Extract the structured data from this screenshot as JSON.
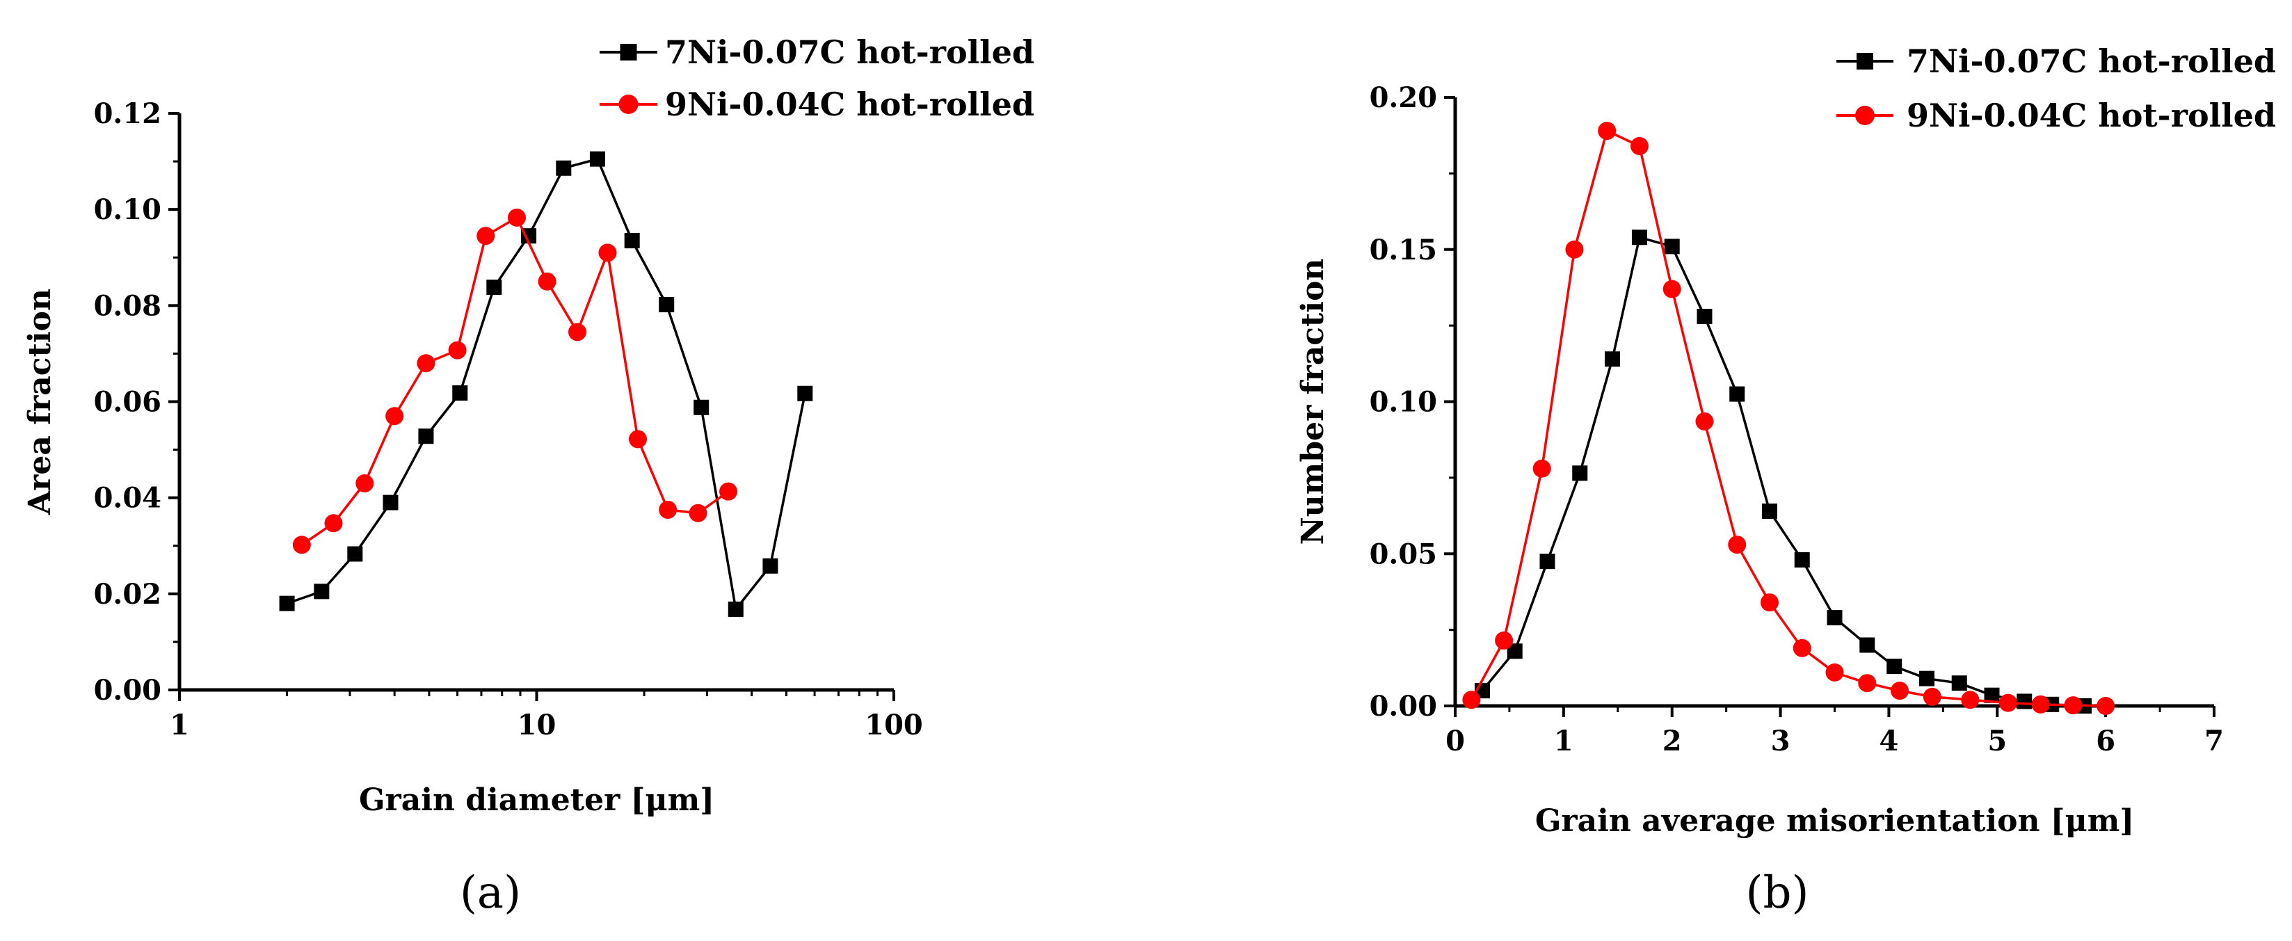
{
  "chart_data": [
    {
      "type": "line",
      "panel_label": "(a)",
      "xlabel": "Grain diameter [μm]",
      "ylabel": "Area fraction",
      "xscale": "log",
      "xlim": [
        1,
        100
      ],
      "ylim": [
        0,
        0.12
      ],
      "xticks": [
        "1",
        "10",
        "100"
      ],
      "yticks": [
        "0.00",
        "0.02",
        "0.04",
        "0.06",
        "0.08",
        "0.10",
        "0.12"
      ],
      "legend_position": "top-right",
      "series": [
        {
          "name": "7Ni-0.07C hot-rolled",
          "color": "#000000",
          "marker": "square",
          "x": [
            2.0,
            2.5,
            3.1,
            3.9,
            4.9,
            6.1,
            7.6,
            9.5,
            11.9,
            14.8,
            18.5,
            23.1,
            28.9,
            36.1,
            45.1,
            56.4
          ],
          "y": [
            0.018,
            0.0205,
            0.0283,
            0.039,
            0.0528,
            0.0618,
            0.0838,
            0.0945,
            0.1086,
            0.1105,
            0.0935,
            0.0802,
            0.0588,
            0.0168,
            0.0258,
            0.0617
          ]
        },
        {
          "name": "9Ni-0.04C hot-rolled",
          "color": "#ff0000",
          "marker": "circle",
          "x": [
            2.2,
            2.7,
            3.3,
            4.0,
            4.9,
            6.0,
            7.2,
            8.8,
            10.7,
            13.0,
            15.8,
            19.2,
            23.3,
            28.3,
            34.4
          ],
          "y": [
            0.0302,
            0.0347,
            0.043,
            0.057,
            0.068,
            0.0707,
            0.0945,
            0.0983,
            0.085,
            0.0745,
            0.091,
            0.0522,
            0.0375,
            0.0368,
            0.0413
          ]
        }
      ]
    },
    {
      "type": "line",
      "panel_label": "(b)",
      "xlabel": "Grain average misorientation [μm]",
      "ylabel": "Number fraction",
      "xscale": "linear",
      "xlim": [
        0,
        7
      ],
      "ylim": [
        0,
        0.2
      ],
      "xticks": [
        "0",
        "1",
        "2",
        "3",
        "4",
        "5",
        "6",
        "7"
      ],
      "yticks": [
        "0.00",
        "0.05",
        "0.10",
        "0.15",
        "0.20"
      ],
      "legend_position": "top-right",
      "series": [
        {
          "name": "7Ni-0.07C hot-rolled",
          "color": "#000000",
          "marker": "square",
          "x": [
            0.25,
            0.55,
            0.85,
            1.15,
            1.45,
            1.7,
            2.0,
            2.3,
            2.6,
            2.9,
            3.2,
            3.5,
            3.8,
            4.05,
            4.35,
            4.65,
            4.95,
            5.25,
            5.5,
            5.8
          ],
          "y": [
            0.005,
            0.018,
            0.0475,
            0.0765,
            0.114,
            0.154,
            0.151,
            0.128,
            0.1025,
            0.064,
            0.048,
            0.029,
            0.02,
            0.013,
            0.009,
            0.0075,
            0.0035,
            0.0015,
            0.0005,
            0.0
          ]
        },
        {
          "name": "9Ni-0.04C hot-rolled",
          "color": "#ff0000",
          "marker": "circle",
          "x": [
            0.15,
            0.45,
            0.8,
            1.1,
            1.4,
            1.7,
            2.0,
            2.3,
            2.6,
            2.9,
            3.2,
            3.5,
            3.8,
            4.1,
            4.4,
            4.75,
            5.1,
            5.4,
            5.7,
            6.0
          ],
          "y": [
            0.002,
            0.0215,
            0.078,
            0.15,
            0.189,
            0.184,
            0.137,
            0.0935,
            0.053,
            0.034,
            0.019,
            0.011,
            0.0075,
            0.005,
            0.003,
            0.002,
            0.001,
            0.0005,
            0.0002,
            0.0
          ]
        }
      ]
    }
  ]
}
